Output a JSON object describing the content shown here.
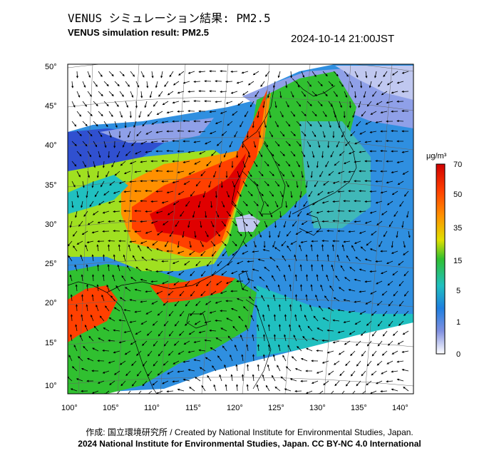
{
  "header": {
    "title_jp": "VENUS シミュレーション結果: PM2.5",
    "title_en": "VENUS simulation result: PM2.5",
    "timestamp": "2024-10-14 21:00JST"
  },
  "footer": {
    "credit": "作成: 国立環境研究所 / Created by National Institute for Environmental Studies, Japan.",
    "copyright": "2024 National Institute for Environmental Studies, Japan. CC BY-NC 4.0 International"
  },
  "colorbar": {
    "unit": "μg/m³",
    "ticks": [
      "70",
      "50",
      "35",
      "15",
      "5",
      "1",
      "0"
    ],
    "colors": [
      "#e00000",
      "#ff5000",
      "#ff9000",
      "#f0d000",
      "#a0e020",
      "#30c030",
      "#20c0c0",
      "#2080e0",
      "#3050d0",
      "#8090e0",
      "#ffffff"
    ]
  },
  "map": {
    "lon_labels": [
      "100°",
      "105°",
      "110°",
      "115°",
      "120°",
      "125°",
      "130°",
      "135°",
      "140°"
    ],
    "lat_labels": [
      "50°",
      "45°",
      "40°",
      "35°",
      "30°",
      "25°",
      "20°",
      "15°",
      "10°"
    ],
    "wind_vectors": "wind-arrows",
    "ocean_color": "#ffffff"
  }
}
